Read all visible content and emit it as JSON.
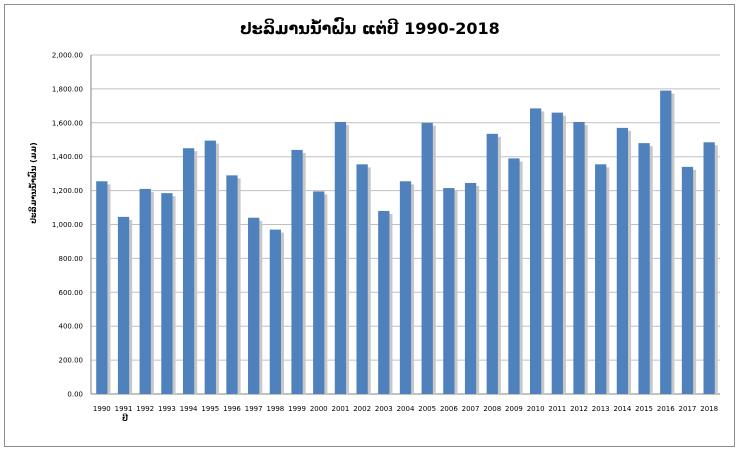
{
  "chart_data": {
    "type": "bar",
    "title": "ປະລິມານນ້ຳຝົນ ແຕ່ປີ 1990-2018",
    "ylabel": "ປະລິມານນ້ຳຝົນ (ມມ)",
    "xlabel": "ປີ",
    "ylim": [
      0,
      2000
    ],
    "y_tick_labels": [
      "0.00",
      "200.00",
      "400.00",
      "600.00",
      "800.00",
      "1,000.00",
      "1,200.00",
      "1,400.00",
      "1,600.00",
      "1,800.00",
      "2,000.00"
    ],
    "categories": [
      "1990",
      "1991",
      "1992",
      "1993",
      "1994",
      "1995",
      "1996",
      "1997",
      "1998",
      "1999",
      "2000",
      "2001",
      "2002",
      "2003",
      "2004",
      "2005",
      "2006",
      "2007",
      "2008",
      "2009",
      "2010",
      "2011",
      "2012",
      "2013",
      "2014",
      "2015",
      "2016",
      "2017",
      "2018"
    ],
    "values": [
      1255,
      1045,
      1210,
      1185,
      1450,
      1495,
      1290,
      1040,
      970,
      1440,
      1195,
      1605,
      1355,
      1080,
      1255,
      1600,
      1215,
      1245,
      1535,
      1390,
      1685,
      1660,
      1605,
      1355,
      1570,
      1480,
      1790,
      1340,
      1485
    ],
    "bar_color": "#4f81bd",
    "shadow_color": "#c8c8c8",
    "grid": true,
    "legend": "none"
  }
}
